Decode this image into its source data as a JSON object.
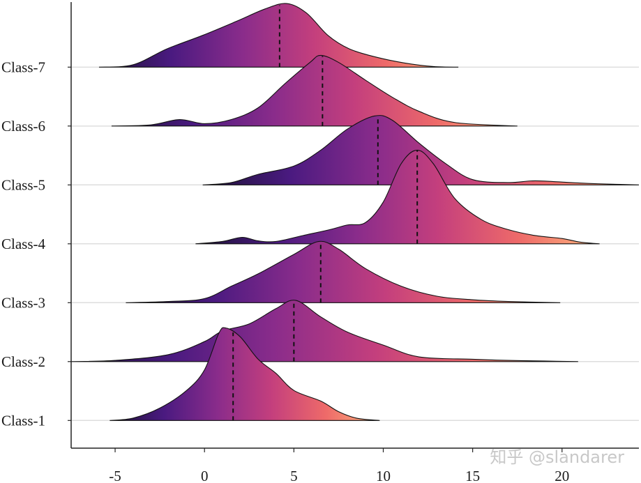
{
  "chart_data": {
    "type": "ridgeline",
    "xlim": [
      -7.46,
      24.3
    ],
    "xticks": [
      -5,
      0,
      5,
      10,
      15,
      20
    ],
    "ylim": [
      0.53,
      8.14
    ],
    "grid": true,
    "gradient": [
      "#1c1234",
      "#4a1a80",
      "#8a2c8b",
      "#c43f7d",
      "#ee6a69",
      "#fdb57e"
    ],
    "watermark": "知乎 @slandarer",
    "series": [
      {
        "name": "Class-1",
        "median": 1.6,
        "x": [
          -5.3,
          -4,
          -2.5,
          -1,
          0,
          0.8,
          1.2,
          2,
          3,
          4,
          5,
          6.5,
          7.5,
          8.5,
          9.8
        ],
        "density": [
          0,
          0.04,
          0.21,
          0.51,
          0.86,
          1.48,
          1.57,
          1.42,
          1.04,
          0.8,
          0.51,
          0.33,
          0.15,
          0.04,
          0
        ]
      },
      {
        "name": "Class-2",
        "median": 5.0,
        "x": [
          -7.46,
          -5,
          -2,
          0,
          1,
          2.5,
          4,
          5.1,
          6.5,
          8,
          10,
          12,
          15,
          17,
          19,
          20.9
        ],
        "density": [
          0,
          0.02,
          0.12,
          0.34,
          0.52,
          0.64,
          0.9,
          1.04,
          0.76,
          0.5,
          0.28,
          0.08,
          0.04,
          0.02,
          0.01,
          0
        ]
      },
      {
        "name": "Class-3",
        "median": 6.5,
        "x": [
          -4.4,
          -2,
          0,
          1.5,
          3,
          5,
          6.4,
          7.5,
          9,
          11,
          13,
          15,
          17,
          19.9
        ],
        "density": [
          0,
          0.02,
          0.07,
          0.28,
          0.49,
          0.82,
          1.04,
          0.91,
          0.58,
          0.28,
          0.11,
          0.05,
          0.02,
          0
        ]
      },
      {
        "name": "Class-4",
        "median": 11.9,
        "x": [
          -0.5,
          1,
          2.1,
          3,
          4,
          5.5,
          7,
          8,
          9,
          10,
          11,
          11.9,
          12.8,
          14,
          15.5,
          17,
          18.5,
          20,
          21,
          22.1
        ],
        "density": [
          0,
          0.04,
          0.11,
          0.05,
          0.04,
          0.14,
          0.24,
          0.32,
          0.36,
          0.71,
          1.36,
          1.59,
          1.36,
          0.77,
          0.41,
          0.24,
          0.14,
          0.09,
          0.03,
          0
        ]
      },
      {
        "name": "Class-5",
        "median": 9.7,
        "x": [
          -0.1,
          1.5,
          3,
          5,
          6.5,
          8,
          9.5,
          10.5,
          12,
          13.5,
          15,
          17,
          18.5,
          20.5,
          22,
          24.3
        ],
        "density": [
          0,
          0.04,
          0.18,
          0.32,
          0.59,
          0.95,
          1.17,
          1.1,
          0.71,
          0.36,
          0.09,
          0.04,
          0.07,
          0.04,
          0.02,
          0
        ]
      },
      {
        "name": "Class-6",
        "median": 6.6,
        "x": [
          -5.2,
          -3,
          -1.4,
          0,
          1.5,
          3,
          4.5,
          5.9,
          6.5,
          7.5,
          9,
          10.5,
          12,
          14,
          17.5
        ],
        "density": [
          0,
          0.02,
          0.11,
          0.04,
          0.11,
          0.31,
          0.72,
          1.08,
          1.2,
          1.08,
          0.78,
          0.49,
          0.25,
          0.06,
          0
        ]
      },
      {
        "name": "Class-7",
        "median": 4.2,
        "x": [
          -5.9,
          -4,
          -2.1,
          -0.1,
          1.8,
          3.4,
          4.6,
          5.7,
          6.9,
          8.1,
          9.6,
          11.2,
          12.8,
          14.2
        ],
        "density": [
          0,
          0.04,
          0.31,
          0.54,
          0.78,
          0.99,
          1.08,
          0.92,
          0.54,
          0.31,
          0.17,
          0.07,
          0.01,
          0
        ]
      }
    ]
  }
}
